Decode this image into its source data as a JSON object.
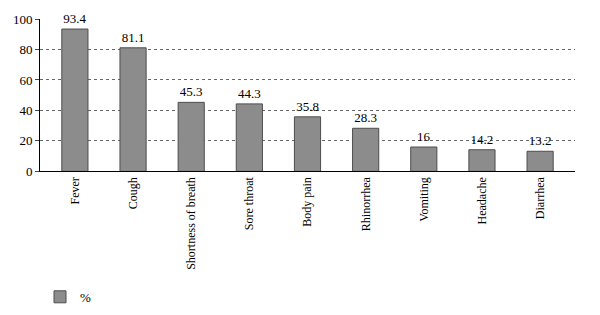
{
  "chart_data": {
    "type": "bar",
    "categories": [
      "Fever",
      "Cough",
      "Shortness of breath",
      "Sore throat",
      "Body pain",
      "Rhinorrhea",
      "Vomiting",
      "Headache",
      "Diarrhea"
    ],
    "series": [
      {
        "name": "%",
        "color": "#8c8c8c",
        "values": [
          93.4,
          81.1,
          45.3,
          44.3,
          35.8,
          28.3,
          16,
          14.2,
          13.2
        ]
      }
    ],
    "ylim": [
      0,
      100
    ],
    "yticks": [
      0,
      20,
      40,
      60,
      80,
      100
    ],
    "grid": true,
    "data_labels": true,
    "legend": "bottom left"
  }
}
